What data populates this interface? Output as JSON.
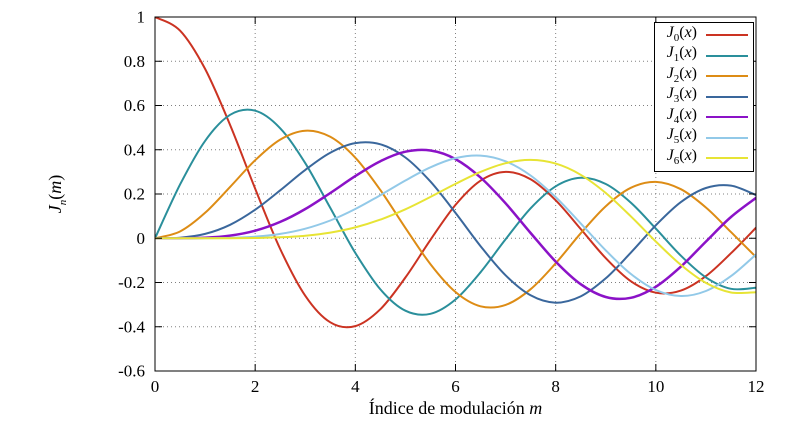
{
  "chart_data": {
    "type": "line",
    "title": "",
    "xlabel": "Índice de modulación m",
    "ylabel": "J_n(m)",
    "xlim": [
      0,
      12
    ],
    "ylim": [
      -0.6,
      1
    ],
    "xticks": [
      "0",
      "2",
      "4",
      "6",
      "8",
      "10",
      "12"
    ],
    "yticks": [
      "-0.6",
      "-0.4",
      "-0.2",
      "0",
      "0.2",
      "0.4",
      "0.6",
      "0.8",
      "1"
    ],
    "grid": "dotted",
    "legend_position": "top-right",
    "grid_color": "#808080",
    "axis_color": "#000000",
    "x": [
      0,
      0.5,
      1,
      1.5,
      2,
      2.5,
      3,
      3.5,
      4,
      4.5,
      5,
      5.5,
      6,
      6.5,
      7,
      7.5,
      8,
      8.5,
      9,
      9.5,
      10,
      10.5,
      11,
      11.5,
      12
    ],
    "series": [
      {
        "name": "J_0(x)",
        "color": "#cb3322",
        "width": 2,
        "values": [
          1,
          0.9385,
          0.7652,
          0.5118,
          0.2239,
          -0.0484,
          -0.2601,
          -0.3801,
          -0.3971,
          -0.3205,
          -0.1776,
          -0.0068,
          0.1506,
          0.2601,
          0.3001,
          0.2663,
          0.1717,
          0.0419,
          -0.0903,
          -0.1939,
          -0.2459,
          -0.2366,
          -0.1712,
          -0.0677,
          0.0477
        ]
      },
      {
        "name": "J_1(x)",
        "color": "#2a8f9b",
        "width": 2,
        "values": [
          0,
          0.2423,
          0.4401,
          0.5579,
          0.5767,
          0.4971,
          0.3391,
          0.1374,
          -0.066,
          -0.2311,
          -0.3276,
          -0.3414,
          -0.2767,
          -0.1538,
          -0.0047,
          0.1352,
          0.2346,
          0.2731,
          0.2453,
          0.1613,
          0.0435,
          -0.0789,
          -0.1768,
          -0.2284,
          -0.2234
        ]
      },
      {
        "name": "J_2(x)",
        "color": "#dd8c15",
        "width": 2,
        "values": [
          0,
          0.0306,
          0.1149,
          0.2321,
          0.3528,
          0.4461,
          0.4861,
          0.4586,
          0.3641,
          0.2178,
          0.0466,
          -0.1173,
          -0.2429,
          -0.3074,
          -0.3014,
          -0.2303,
          -0.113,
          0.0223,
          0.1448,
          0.2279,
          0.2546,
          0.2216,
          0.139,
          0.028,
          -0.0849
        ]
      },
      {
        "name": "J_3(x)",
        "color": "#3a679c",
        "width": 2,
        "values": [
          0,
          0.0026,
          0.0196,
          0.061,
          0.1289,
          0.2166,
          0.3091,
          0.3868,
          0.4302,
          0.4247,
          0.3648,
          0.2561,
          0.1148,
          -0.0353,
          -0.1676,
          -0.258,
          -0.2911,
          -0.2626,
          -0.1809,
          -0.0653,
          0.0584,
          0.1633,
          0.2273,
          0.2381,
          0.1951
        ]
      },
      {
        "name": "J_4(x)",
        "color": "#8b12c7",
        "width": 2.5,
        "values": [
          0,
          0.0002,
          0.0025,
          0.0118,
          0.034,
          0.0738,
          0.132,
          0.2044,
          0.2811,
          0.3484,
          0.3912,
          0.3967,
          0.3576,
          0.2748,
          0.1578,
          0.0239,
          -0.1054,
          -0.2077,
          -0.2655,
          -0.2691,
          -0.2196,
          -0.1283,
          -0.015,
          0.0962,
          0.1825
        ]
      },
      {
        "name": "J_5(x)",
        "color": "#92c9e8",
        "width": 2,
        "values": [
          0,
          0.0,
          0.0002,
          0.0018,
          0.007,
          0.0195,
          0.043,
          0.0804,
          0.1321,
          0.1947,
          0.2611,
          0.3209,
          0.3621,
          0.3736,
          0.3479,
          0.2835,
          0.1858,
          0.0671,
          -0.055,
          -0.1613,
          -0.2341,
          -0.2611,
          -0.2383,
          -0.1712,
          -0.0735
        ]
      },
      {
        "name": "J_6(x)",
        "color": "#e7e435",
        "width": 2,
        "values": [
          0,
          0.0,
          0.0,
          0.0004,
          0.0012,
          0.0042,
          0.0114,
          0.0254,
          0.0491,
          0.0843,
          0.131,
          0.1868,
          0.2458,
          0.2999,
          0.3392,
          0.3541,
          0.3376,
          0.2867,
          0.2043,
          0.0993,
          -0.0145,
          -0.1203,
          -0.2016,
          -0.2451,
          -0.2437
        ]
      }
    ]
  }
}
